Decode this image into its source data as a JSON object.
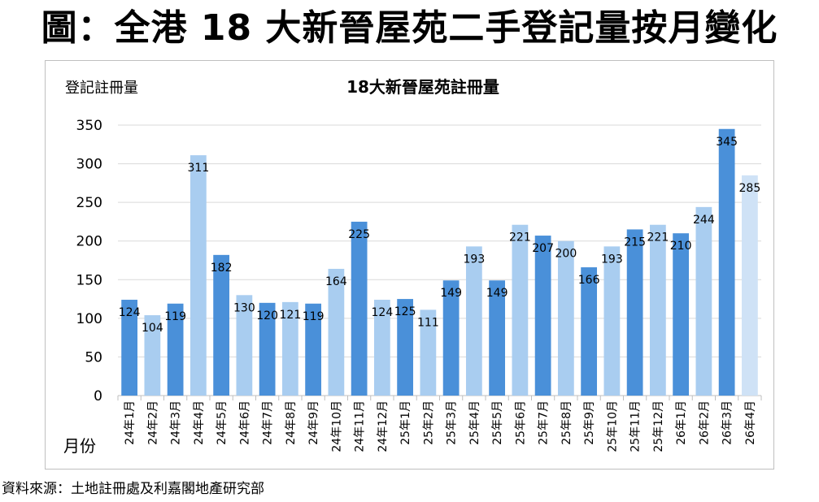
{
  "page_title": "圖：全港 18 大新晉屋苑二手登記量按月變化",
  "source_note": "資料來源：土地註冊處及利嘉閣地產研究部",
  "colors": {
    "dark": "#4a90d9",
    "mid": "#a9cdf0",
    "light": "#cfe2f6",
    "grid": "#d9d9d9"
  },
  "chart_data": {
    "type": "bar",
    "title": "18大新晉屋苑註冊量",
    "ylabel": "登記註冊量",
    "xlabel": "月份",
    "ylim": [
      0,
      350
    ],
    "yticks": [
      0,
      50,
      100,
      150,
      200,
      250,
      300,
      350
    ],
    "grid": true,
    "categories": [
      "24年1月",
      "24年2月",
      "24年3月",
      "24年4月",
      "24年5月",
      "24年6月",
      "24年7月",
      "24年8月",
      "24年9月",
      "24年10月",
      "24年11月",
      "24年12月",
      "25年1月",
      "25年2月",
      "25年3月",
      "25年4月",
      "25年5月",
      "25年6月",
      "25年7月",
      "25年8月",
      "25年9月",
      "25年10月",
      "25年11月",
      "25年12月",
      "26年1月",
      "26年2月",
      "26年3月",
      "26年4月"
    ],
    "values": [
      124,
      104,
      119,
      311,
      182,
      130,
      120,
      121,
      119,
      164,
      225,
      124,
      125,
      111,
      149,
      193,
      149,
      221,
      207,
      200,
      166,
      193,
      215,
      221,
      210,
      244,
      345,
      285
    ],
    "bar_colors": [
      "dark",
      "mid",
      "dark",
      "mid",
      "dark",
      "mid",
      "dark",
      "mid",
      "dark",
      "mid",
      "dark",
      "mid",
      "dark",
      "mid",
      "dark",
      "mid",
      "dark",
      "mid",
      "dark",
      "mid",
      "dark",
      "mid",
      "dark",
      "mid",
      "dark",
      "mid",
      "dark",
      "light"
    ]
  }
}
